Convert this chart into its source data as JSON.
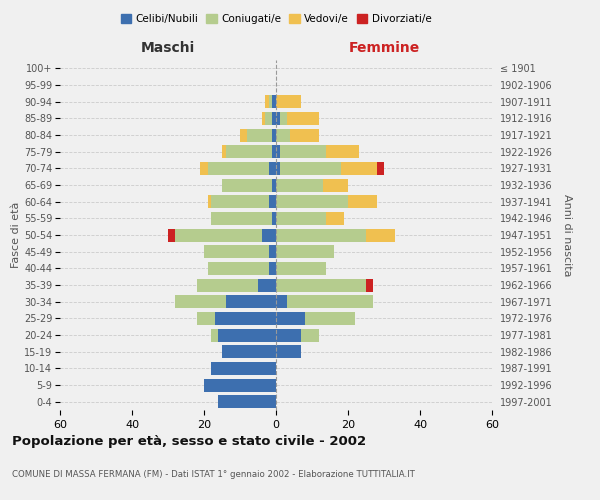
{
  "age_groups": [
    "0-4",
    "5-9",
    "10-14",
    "15-19",
    "20-24",
    "25-29",
    "30-34",
    "35-39",
    "40-44",
    "45-49",
    "50-54",
    "55-59",
    "60-64",
    "65-69",
    "70-74",
    "75-79",
    "80-84",
    "85-89",
    "90-94",
    "95-99",
    "100+"
  ],
  "birth_years": [
    "1997-2001",
    "1992-1996",
    "1987-1991",
    "1982-1986",
    "1977-1981",
    "1972-1976",
    "1967-1971",
    "1962-1966",
    "1957-1961",
    "1952-1956",
    "1947-1951",
    "1942-1946",
    "1937-1941",
    "1932-1936",
    "1927-1931",
    "1922-1926",
    "1917-1921",
    "1912-1916",
    "1907-1911",
    "1902-1906",
    "≤ 1901"
  ],
  "males": {
    "celibi": [
      16,
      20,
      18,
      15,
      16,
      17,
      14,
      5,
      2,
      2,
      4,
      1,
      2,
      1,
      2,
      1,
      1,
      1,
      1,
      0,
      0
    ],
    "coniugati": [
      0,
      0,
      0,
      0,
      2,
      5,
      14,
      17,
      17,
      18,
      24,
      17,
      16,
      14,
      17,
      13,
      7,
      2,
      1,
      0,
      0
    ],
    "vedovi": [
      0,
      0,
      0,
      0,
      0,
      0,
      0,
      0,
      0,
      0,
      0,
      0,
      1,
      0,
      2,
      1,
      2,
      1,
      1,
      0,
      0
    ],
    "divorziati": [
      0,
      0,
      0,
      0,
      0,
      0,
      0,
      0,
      0,
      0,
      2,
      0,
      0,
      0,
      0,
      0,
      0,
      0,
      0,
      0,
      0
    ]
  },
  "females": {
    "nubili": [
      0,
      0,
      0,
      7,
      7,
      8,
      3,
      0,
      0,
      0,
      0,
      0,
      0,
      0,
      1,
      1,
      0,
      1,
      0,
      0,
      0
    ],
    "coniugate": [
      0,
      0,
      0,
      0,
      5,
      14,
      24,
      25,
      14,
      16,
      25,
      14,
      20,
      13,
      17,
      13,
      4,
      2,
      0,
      0,
      0
    ],
    "vedove": [
      0,
      0,
      0,
      0,
      0,
      0,
      0,
      0,
      0,
      0,
      8,
      5,
      8,
      7,
      10,
      9,
      8,
      9,
      7,
      0,
      0
    ],
    "divorziate": [
      0,
      0,
      0,
      0,
      0,
      0,
      0,
      2,
      0,
      0,
      0,
      0,
      0,
      0,
      2,
      0,
      0,
      0,
      0,
      0,
      0
    ]
  },
  "colors": {
    "celibi": "#3d6faf",
    "coniugati": "#b5cc8e",
    "vedovi": "#f0c050",
    "divorziati": "#cc2222"
  },
  "title": "Popolazione per età, sesso e stato civile - 2002",
  "subtitle": "COMUNE DI MASSA FERMANA (FM) - Dati ISTAT 1° gennaio 2002 - Elaborazione TUTTITALIA.IT",
  "xlabel_left": "Maschi",
  "xlabel_right": "Femmine",
  "ylabel_left": "Fasce di età",
  "ylabel_right": "Anni di nascita",
  "xlim": 60,
  "bg_color": "#f0f0f0",
  "grid_color": "#cccccc",
  "legend_labels": [
    "Celibi/Nubili",
    "Coniugati/e",
    "Vedovi/e",
    "Divorziati/e"
  ]
}
